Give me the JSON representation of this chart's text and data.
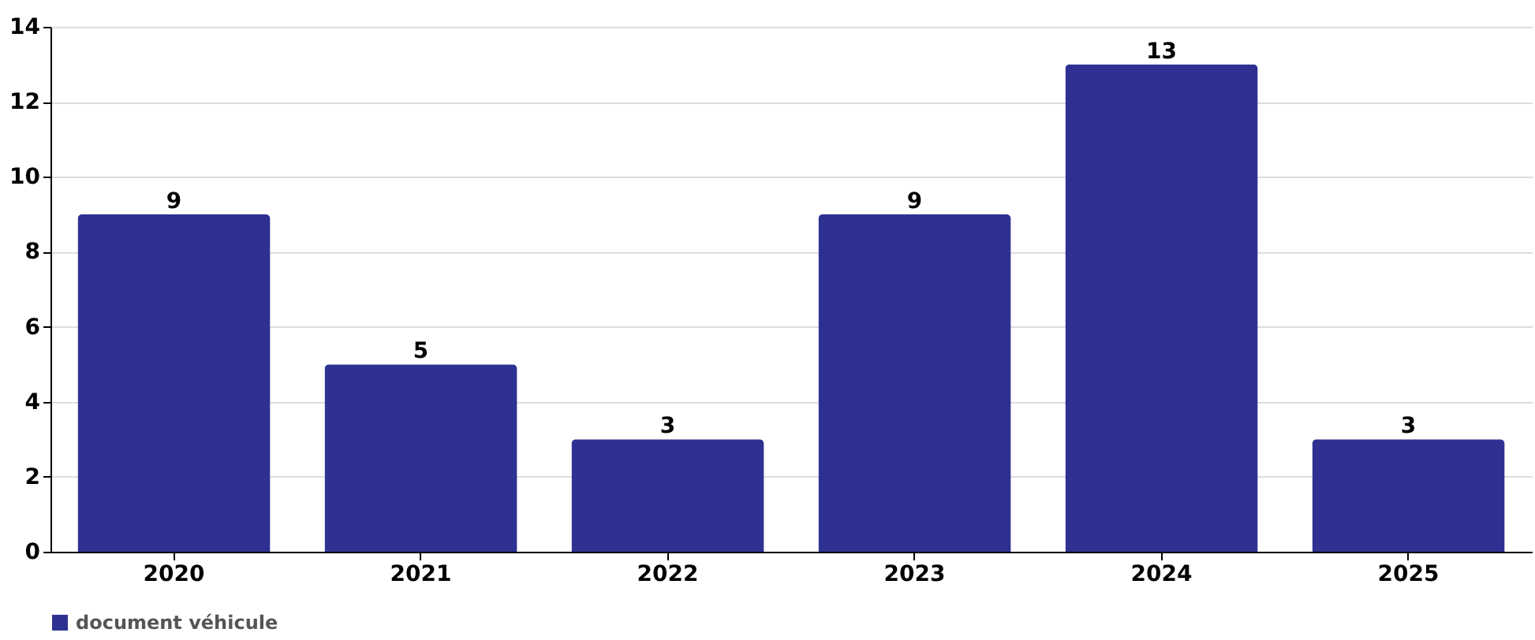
{
  "chart_data": {
    "type": "bar",
    "categories": [
      "2020",
      "2021",
      "2022",
      "2023",
      "2024",
      "2025"
    ],
    "series": [
      {
        "name": "document véhicule",
        "color": "#2e3192",
        "values": [
          9,
          5,
          3,
          9,
          13,
          3
        ]
      }
    ],
    "ylim": [
      0,
      14
    ],
    "yticks": [
      0,
      2,
      4,
      6,
      8,
      10,
      12,
      14
    ],
    "grid": "y",
    "data_labels": true,
    "legend": "bottom"
  }
}
